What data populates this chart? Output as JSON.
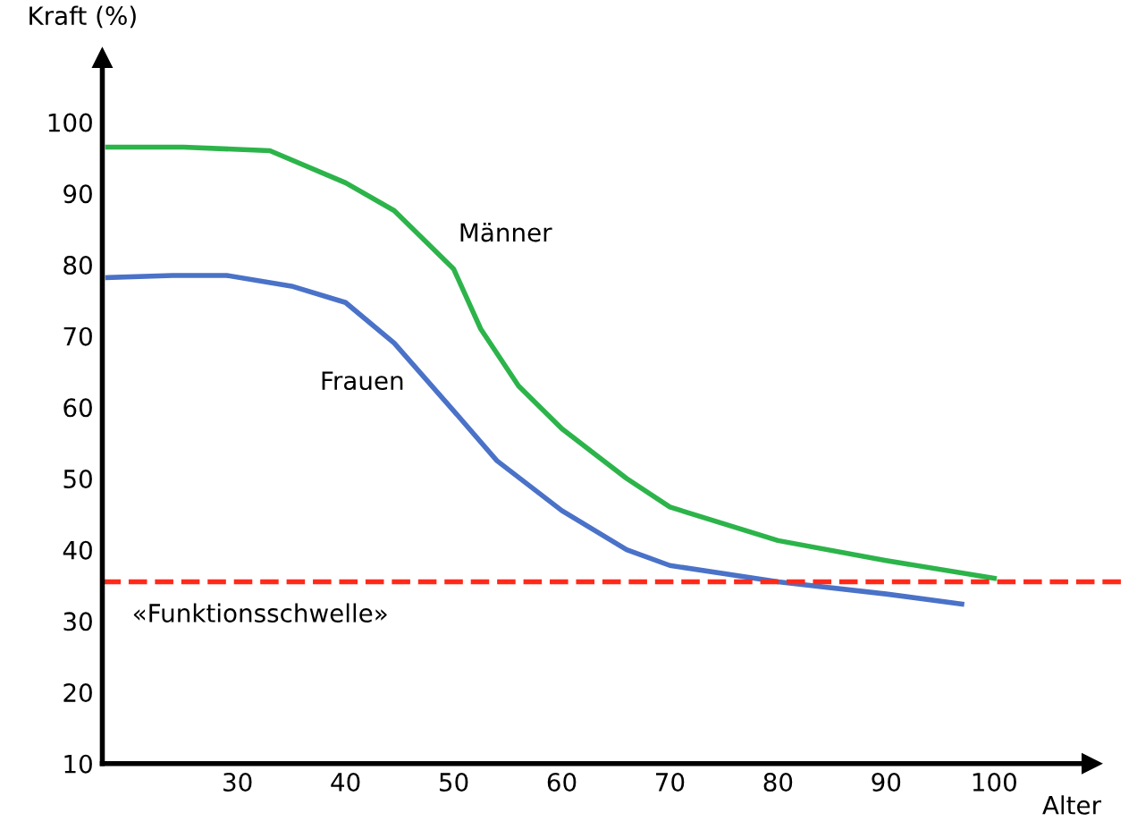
{
  "chart_data": {
    "type": "line",
    "xlabel": "Alter",
    "ylabel": "Kraft (%)",
    "xlim": [
      17.5,
      109
    ],
    "ylim": [
      10,
      109
    ],
    "xticks": [
      30,
      40,
      50,
      60,
      70,
      80,
      90,
      100
    ],
    "yticks": [
      10,
      20,
      30,
      40,
      50,
      60,
      70,
      80,
      90,
      100
    ],
    "grid": false,
    "legend": false,
    "marker": "none",
    "line_style": "solid",
    "series": [
      {
        "name": "Männer",
        "color": "#2cb44a",
        "x": [
          18,
          25,
          33,
          40,
          44.5,
          50,
          52.5,
          56,
          60,
          66,
          70,
          80,
          90,
          100
        ],
        "values": [
          96.5,
          96.5,
          96,
          91.5,
          87.6,
          79.4,
          71,
          63,
          57,
          50,
          46,
          41.3,
          38.5,
          36
        ]
      },
      {
        "name": "Frauen",
        "color": "#4a72c8",
        "x": [
          18,
          24,
          29,
          35,
          40,
          44.5,
          50,
          54,
          60,
          66,
          70,
          80,
          90,
          97
        ],
        "values": [
          78.2,
          78.5,
          78.5,
          77,
          74.7,
          69,
          59.5,
          52.5,
          45.5,
          40,
          37.8,
          35.5,
          33.8,
          32.4
        ]
      }
    ],
    "ref_lines": [
      {
        "axis": "y",
        "value": 35.5,
        "label": "«Funktionsschwelle»",
        "color": "#ff2a1a",
        "line_style": "dashed"
      }
    ]
  }
}
